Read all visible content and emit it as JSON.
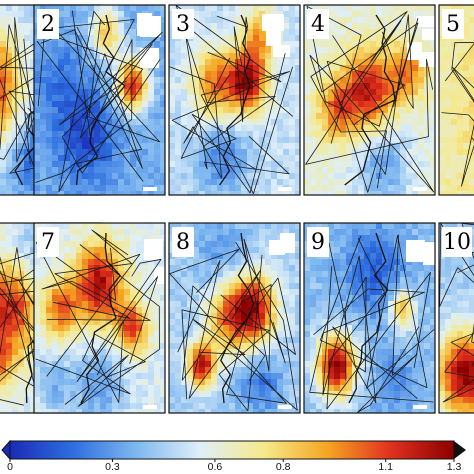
{
  "panels": [
    {
      "label": "",
      "row": 0,
      "col": 0,
      "hot": [
        [
          0.1,
          0.45,
          0.42,
          1.25
        ],
        [
          0.0,
          0.25,
          0.25,
          0.9
        ]
      ],
      "cold": [
        [
          0.5,
          0.8,
          0.35,
          0.15
        ]
      ],
      "base": 0.45
    },
    {
      "label": "2",
      "row": 0,
      "col": 1,
      "hot": [
        [
          0.75,
          0.42,
          0.18,
          1.15
        ],
        [
          0.55,
          0.15,
          0.18,
          0.85
        ]
      ],
      "cold": [
        [
          0.4,
          0.7,
          0.35,
          0.08
        ],
        [
          0.2,
          0.4,
          0.3,
          0.2
        ]
      ],
      "base": 0.35
    },
    {
      "label": "3",
      "row": 0,
      "col": 2,
      "hot": [
        [
          0.6,
          0.4,
          0.22,
          1.25
        ],
        [
          0.35,
          0.42,
          0.25,
          1.0
        ],
        [
          0.7,
          0.15,
          0.2,
          0.9
        ]
      ],
      "cold": [
        [
          0.4,
          0.8,
          0.3,
          0.25
        ]
      ],
      "base": 0.5
    },
    {
      "label": "4",
      "row": 0,
      "col": 3,
      "hot": [
        [
          0.5,
          0.45,
          0.28,
          1.2
        ],
        [
          0.25,
          0.55,
          0.22,
          1.0
        ],
        [
          0.8,
          0.35,
          0.2,
          1.0
        ]
      ],
      "cold": [
        [
          0.6,
          0.85,
          0.3,
          0.3
        ]
      ],
      "base": 0.6
    },
    {
      "label": "5",
      "row": 0,
      "col": 4,
      "hot": [
        [
          0.6,
          0.5,
          0.4,
          1.1
        ]
      ],
      "cold": [],
      "base": 0.7
    },
    {
      "label": "",
      "row": 1,
      "col": 0,
      "hot": [
        [
          0.3,
          0.45,
          0.35,
          1.15
        ],
        [
          0.2,
          0.75,
          0.2,
          0.9
        ]
      ],
      "cold": [
        [
          0.5,
          0.15,
          0.3,
          0.35
        ]
      ],
      "base": 0.55
    },
    {
      "label": "7",
      "row": 1,
      "col": 1,
      "hot": [
        [
          0.5,
          0.32,
          0.28,
          1.25
        ],
        [
          0.75,
          0.55,
          0.18,
          1.1
        ],
        [
          0.2,
          0.45,
          0.2,
          1.05
        ]
      ],
      "cold": [
        [
          0.5,
          0.85,
          0.3,
          0.3
        ],
        [
          0.15,
          0.85,
          0.2,
          0.35
        ]
      ],
      "base": 0.55
    },
    {
      "label": "8",
      "row": 1,
      "col": 2,
      "hot": [
        [
          0.65,
          0.45,
          0.25,
          1.2
        ],
        [
          0.25,
          0.75,
          0.15,
          1.25
        ],
        [
          0.45,
          0.5,
          0.25,
          0.95
        ]
      ],
      "cold": [
        [
          0.7,
          0.85,
          0.25,
          0.2
        ],
        [
          0.4,
          0.15,
          0.3,
          0.3
        ]
      ],
      "base": 0.45
    },
    {
      "label": "9",
      "row": 1,
      "col": 3,
      "hot": [
        [
          0.25,
          0.75,
          0.22,
          1.3
        ],
        [
          0.75,
          0.45,
          0.15,
          0.9
        ]
      ],
      "cold": [
        [
          0.55,
          0.25,
          0.35,
          0.15
        ],
        [
          0.7,
          0.85,
          0.25,
          0.25
        ]
      ],
      "base": 0.4
    },
    {
      "label": "10",
      "row": 1,
      "col": 4,
      "hot": [
        [
          0.2,
          0.8,
          0.3,
          1.3
        ]
      ],
      "cold": [
        [
          0.6,
          0.3,
          0.3,
          0.3
        ]
      ],
      "base": 0.45
    }
  ],
  "colorbar": {
    "ticks": [
      "0",
      "0.3",
      "0.6",
      "0.8",
      "1.1",
      "1.3"
    ],
    "min": 0,
    "max": 1.3,
    "tick_values": [
      0,
      0.3,
      0.6,
      0.8,
      1.1,
      1.3
    ],
    "stops": [
      "#1a2bb8",
      "#2e6fe0",
      "#7fb8f0",
      "#dfeff8",
      "#f5e98a",
      "#f5a623",
      "#e0301e",
      "#8b0000"
    ]
  }
}
